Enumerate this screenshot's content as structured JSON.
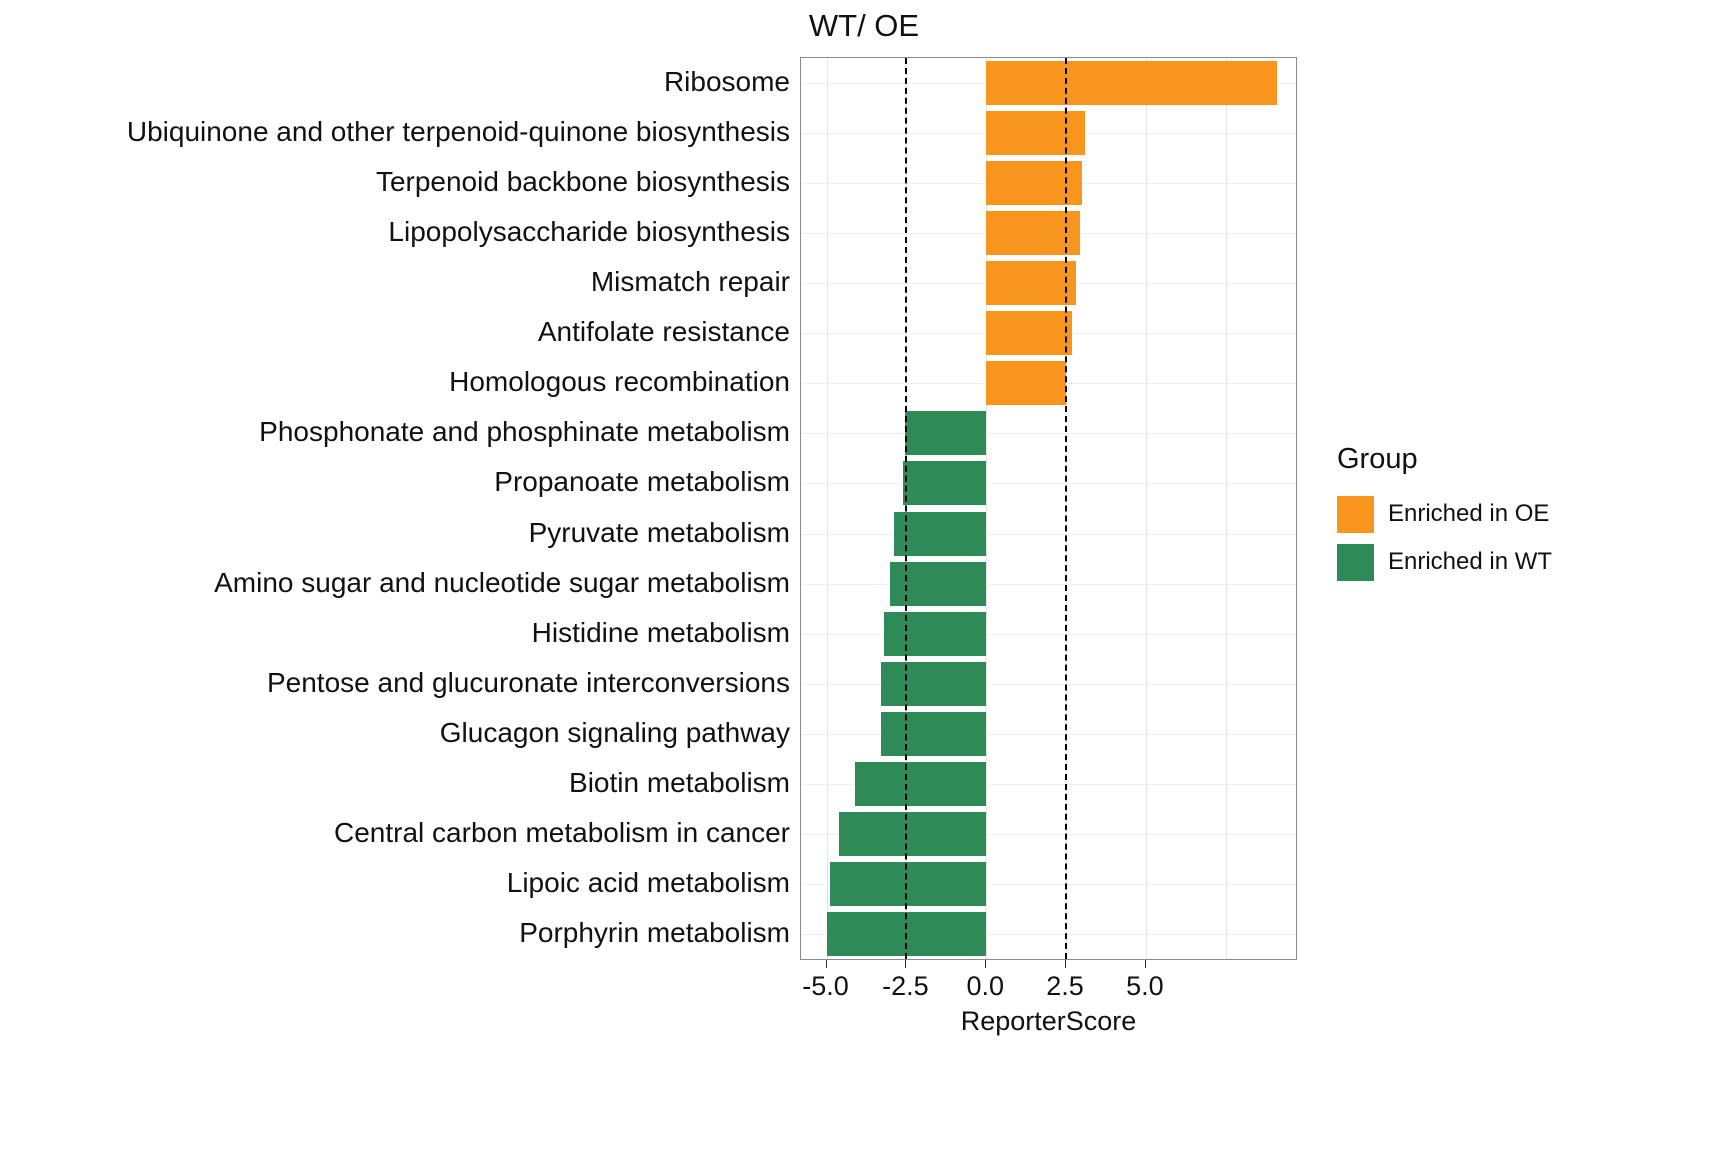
{
  "chart_data": {
    "type": "bar",
    "orientation": "horizontal",
    "title": "WT/ OE",
    "xlabel": "ReporterScore",
    "categories": [
      "Ribosome",
      "Ubiquinone and other terpenoid-quinone biosynthesis",
      "Terpenoid backbone biosynthesis",
      "Lipopolysaccharide biosynthesis",
      "Mismatch repair",
      "Antifolate resistance",
      "Homologous recombination",
      "Phosphonate and phosphinate metabolism",
      "Propanoate metabolism",
      "Pyruvate metabolism",
      "Amino sugar and nucleotide sugar metabolism",
      "Histidine metabolism",
      "Pentose and glucuronate interconversions",
      "Glucagon signaling pathway",
      "Biotin metabolism",
      "Central carbon metabolism in cancer",
      "Lipoic acid metabolism",
      "Porphyrin metabolism"
    ],
    "values": [
      9.1,
      3.1,
      3.0,
      2.95,
      2.8,
      2.7,
      2.5,
      -2.55,
      -2.6,
      -2.9,
      -3.0,
      -3.2,
      -3.3,
      -3.3,
      -4.1,
      -4.6,
      -4.9,
      -5.0
    ],
    "groups": [
      "Enriched in OE",
      "Enriched in OE",
      "Enriched in OE",
      "Enriched in OE",
      "Enriched in OE",
      "Enriched in OE",
      "Enriched in OE",
      "Enriched in WT",
      "Enriched in WT",
      "Enriched in WT",
      "Enriched in WT",
      "Enriched in WT",
      "Enriched in WT",
      "Enriched in WT",
      "Enriched in WT",
      "Enriched in WT",
      "Enriched in WT",
      "Enriched in WT"
    ],
    "colors": {
      "Enriched in OE": "#F8951D",
      "Enriched in WT": "#2E8B57"
    },
    "xlim": [
      -5.8,
      9.7
    ],
    "xticks": {
      "values": [
        -5,
        -2.5,
        0,
        2.5,
        5
      ],
      "labels": [
        "-5.0",
        "-2.5",
        "0.0",
        "2.5",
        "5.0"
      ]
    },
    "gridlines": [
      -5,
      -2.5,
      0,
      2.5,
      5,
      7.5
    ],
    "vlines": [
      -2.5,
      2.5
    ],
    "grid": true,
    "legend_position": "right"
  },
  "legend": {
    "title": "Group",
    "items": [
      {
        "label": "Enriched in OE",
        "color": "#F8951D"
      },
      {
        "label": "Enriched in WT",
        "color": "#2E8B57"
      }
    ]
  }
}
